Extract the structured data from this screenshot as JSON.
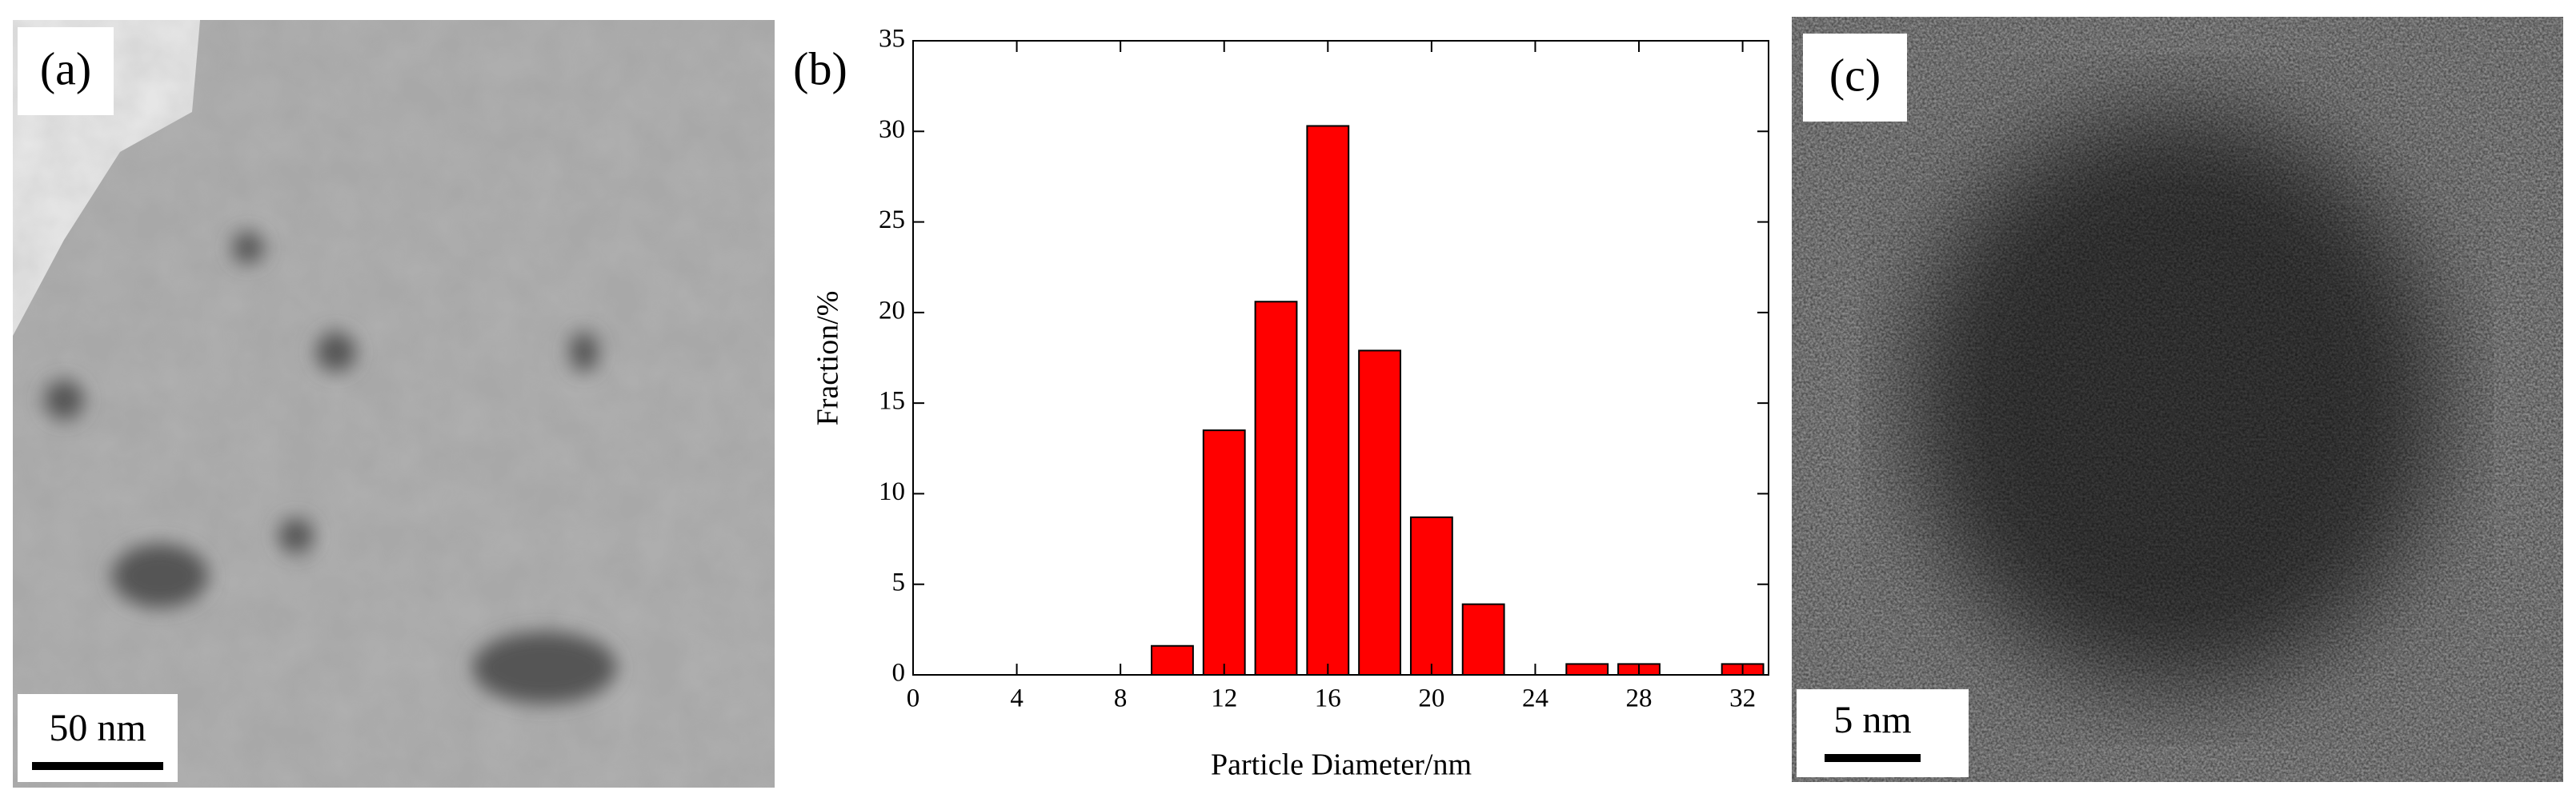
{
  "panel_labels": {
    "a": "(a)",
    "b": "(b)",
    "c": "(c)"
  },
  "scale_bars": {
    "a": "50 nm",
    "c": "5 nm"
  },
  "chart_data": {
    "type": "bar",
    "xlabel": "Particle Diameter/nm",
    "ylabel": "Fraction/%",
    "x": [
      10,
      12,
      14,
      16,
      18,
      20,
      22,
      26,
      28,
      32
    ],
    "values": [
      1.6,
      13.5,
      20.6,
      30.3,
      17.9,
      8.7,
      3.9,
      0.6,
      0.6,
      0.6
    ],
    "color": "#ff0000",
    "xlim": [
      0,
      33
    ],
    "xticks": [
      0,
      4,
      8,
      12,
      16,
      20,
      24,
      28,
      32
    ],
    "ylim": [
      0,
      35
    ],
    "yticks": [
      0,
      5,
      10,
      15,
      20,
      25,
      30,
      35
    ]
  }
}
